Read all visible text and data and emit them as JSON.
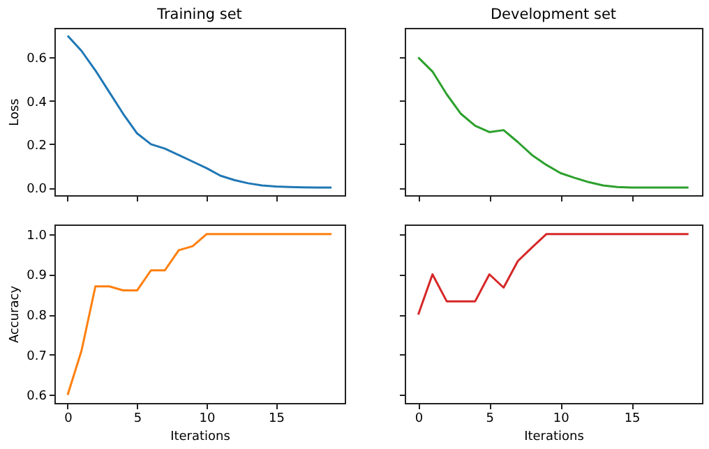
{
  "chart_data": [
    {
      "type": "line",
      "title": "Training set",
      "ylabel": "Loss",
      "tick_labels": "y",
      "x": [
        0,
        1,
        2,
        3,
        4,
        5,
        6,
        7,
        8,
        9,
        10,
        11,
        12,
        13,
        14,
        15,
        16,
        17,
        18,
        19
      ],
      "xlim": [
        -0.95,
        19.95
      ],
      "xticks": [
        0,
        5,
        10,
        15
      ],
      "ylim": [
        -0.035,
        0.736
      ],
      "yticks": [
        {
          "value": 0,
          "label": "0.0"
        },
        {
          "value": 0.2,
          "label": "0.2"
        },
        {
          "value": 0.4,
          "label": "0.4"
        },
        {
          "value": 0.6,
          "label": "0.6"
        }
      ],
      "series": [
        {
          "color": "#1f77b4",
          "values": [
            0.7,
            0.63,
            0.54,
            0.44,
            0.34,
            0.25,
            0.2,
            0.18,
            0.15,
            0.12,
            0.09,
            0.055,
            0.035,
            0.02,
            0.01,
            0.005,
            0.003,
            0.001,
            0,
            0
          ]
        }
      ]
    },
    {
      "type": "line",
      "title": "Development set",
      "tick_labels": false,
      "x": [
        0,
        1,
        2,
        3,
        4,
        5,
        6,
        7,
        8,
        9,
        10,
        11,
        12,
        13,
        14,
        15,
        16,
        17,
        18,
        19
      ],
      "xlim": [
        -0.95,
        19.95
      ],
      "xticks": [
        0,
        5,
        10,
        15
      ],
      "ylim": [
        -0.035,
        0.736
      ],
      "yticks": [
        0,
        0.2,
        0.4,
        0.6
      ],
      "series": [
        {
          "color": "#2ca02c",
          "values": [
            0.6,
            0.535,
            0.43,
            0.34,
            0.285,
            0.256,
            0.265,
            0.21,
            0.15,
            0.105,
            0.067,
            0.045,
            0.025,
            0.01,
            0.003,
            0,
            0,
            0,
            0,
            0
          ]
        }
      ]
    },
    {
      "type": "line",
      "xlabel": "Iterations",
      "ylabel": "Accuracy",
      "x": [
        0,
        1,
        2,
        3,
        4,
        5,
        6,
        7,
        8,
        9,
        10,
        11,
        12,
        13,
        14,
        15,
        16,
        17,
        18,
        19
      ],
      "xlim": [
        -0.95,
        19.95
      ],
      "xticks": [
        0,
        5,
        10,
        15
      ],
      "ylim": [
        0.58,
        1.024
      ],
      "yticks": [
        {
          "value": 0.6,
          "label": "0.6"
        },
        {
          "value": 0.7,
          "label": "0.7"
        },
        {
          "value": 0.8,
          "label": "0.8"
        },
        {
          "value": 0.9,
          "label": "0.9"
        },
        {
          "value": 1,
          "label": "1.0"
        }
      ],
      "series": [
        {
          "color": "#ff7f0e",
          "values": [
            0.6,
            0.71,
            0.87,
            0.87,
            0.86,
            0.86,
            0.91,
            0.91,
            0.96,
            0.97,
            1,
            1,
            1,
            1,
            1,
            1,
            1,
            1,
            1,
            1
          ]
        }
      ]
    },
    {
      "type": "line",
      "xlabel": "Iterations",
      "tick_labels": "x",
      "x": [
        0,
        1,
        2,
        3,
        4,
        5,
        6,
        7,
        8,
        9,
        10,
        11,
        12,
        13,
        14,
        15,
        16,
        17,
        18,
        19
      ],
      "xlim": [
        -0.95,
        19.95
      ],
      "xticks": [
        0,
        5,
        10,
        15
      ],
      "ylim": [
        0.58,
        1.024
      ],
      "yticks": [
        0.6,
        0.7,
        0.8,
        0.9,
        1
      ],
      "series": [
        {
          "color": "#d62728",
          "values": [
            0.8,
            0.9,
            0.833,
            0.833,
            0.833,
            0.9,
            0.867,
            0.933,
            0.967,
            1,
            1,
            1,
            1,
            1,
            1,
            1,
            1,
            1,
            1,
            1
          ]
        }
      ]
    }
  ]
}
